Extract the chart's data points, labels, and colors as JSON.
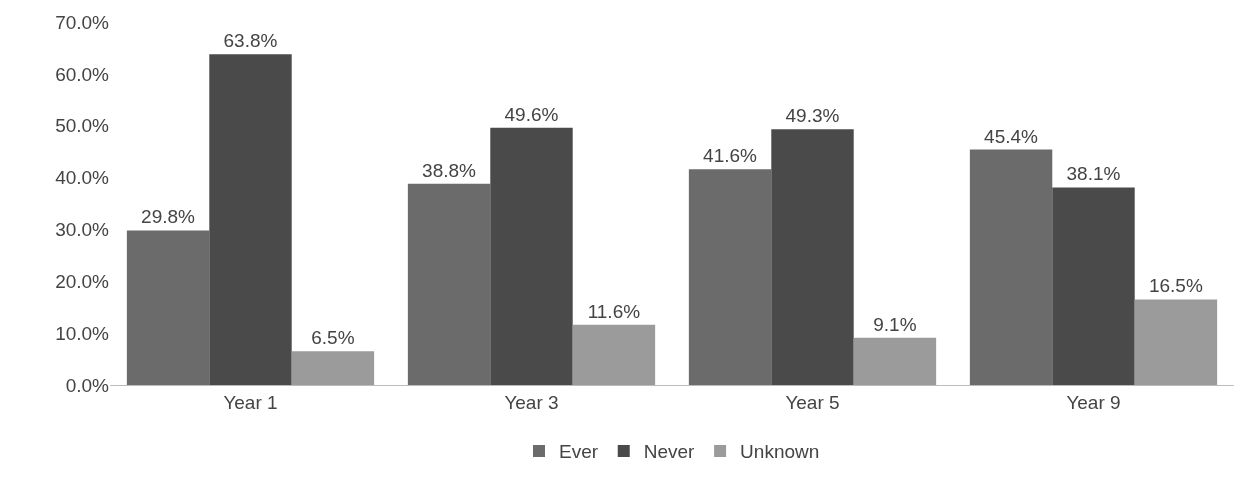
{
  "chart_data": {
    "type": "bar",
    "categories": [
      "Year 1",
      "Year 3",
      "Year 5",
      "Year 9"
    ],
    "series": [
      {
        "name": "Ever",
        "color": "#6b6b6b",
        "values": [
          29.8,
          38.8,
          41.6,
          45.4
        ],
        "value_labels": [
          "29.8%",
          "38.8%",
          "41.6%",
          "45.4%"
        ]
      },
      {
        "name": "Never",
        "color": "#4a4a4a",
        "values": [
          63.8,
          49.6,
          49.3,
          38.1
        ],
        "value_labels": [
          "63.8%",
          "49.6%",
          "49.3%",
          "38.1%"
        ]
      },
      {
        "name": "Unknown",
        "color": "#9b9b9b",
        "values": [
          6.5,
          11.6,
          9.1,
          16.5
        ],
        "value_labels": [
          "6.5%",
          "11.6%",
          "9.1%",
          "16.5%"
        ]
      }
    ],
    "ylim": [
      0,
      70
    ],
    "yticks": [
      {
        "value": 0,
        "label": "0.0%"
      },
      {
        "value": 10,
        "label": "10.0%"
      },
      {
        "value": 20,
        "label": "20.0%"
      },
      {
        "value": 30,
        "label": "30.0%"
      },
      {
        "value": 40,
        "label": "40.0%"
      },
      {
        "value": 50,
        "label": "50.0%"
      },
      {
        "value": 60,
        "label": "60.0%"
      },
      {
        "value": 70,
        "label": "70.0%"
      }
    ],
    "legend": "bottom"
  }
}
